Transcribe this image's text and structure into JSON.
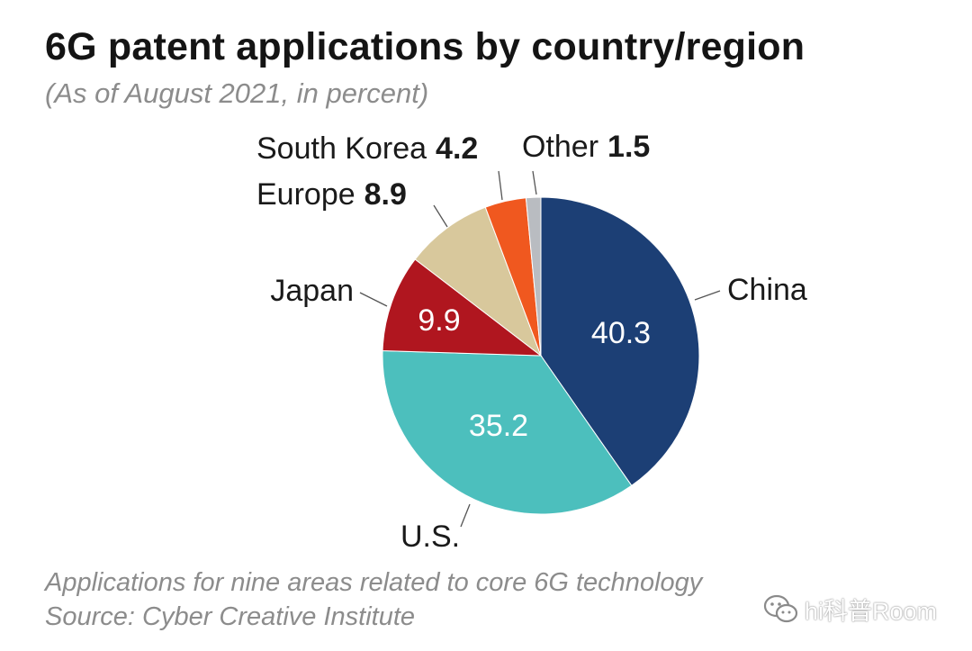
{
  "header": {
    "title": "6G patent applications by country/region",
    "subtitle": "(As of August 2021, in percent)"
  },
  "footer": {
    "note": "Applications for nine areas related to core 6G technology",
    "source": "Source: Cyber Creative Institute"
  },
  "watermark": {
    "text": "hi科普Room",
    "icon": "chat-bubbles-icon"
  },
  "chart_data": {
    "type": "pie",
    "unit": "percent",
    "start": "12 o'clock, clockwise",
    "slices": [
      {
        "label": "China",
        "value": 40.3,
        "color": "#1c3f75",
        "value_inside": true
      },
      {
        "label": "U.S.",
        "value": 35.2,
        "color": "#4cbfbd",
        "value_inside": true
      },
      {
        "label": "Japan",
        "value": 9.9,
        "color": "#b0161f",
        "value_inside": true
      },
      {
        "label": "Europe",
        "value": 8.9,
        "color": "#d8c89c",
        "value_inside": false
      },
      {
        "label": "South Korea",
        "value": 4.2,
        "color": "#f0581f",
        "value_inside": false
      },
      {
        "label": "Other",
        "value": 1.5,
        "color": "#b9bcc1",
        "value_inside": false
      }
    ]
  }
}
